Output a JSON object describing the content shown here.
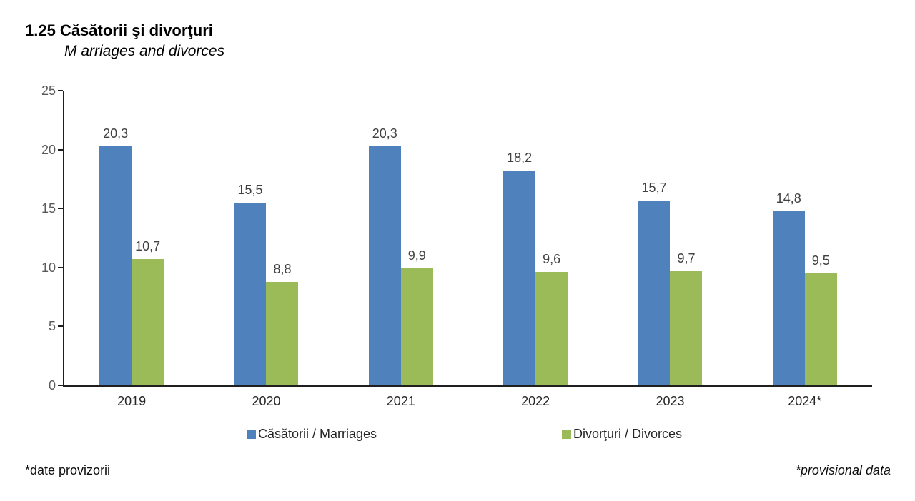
{
  "header": {
    "title": "1.25 Căsătorii şi divorţuri",
    "subtitle": "M arriages and divorces"
  },
  "chart_data": {
    "type": "bar",
    "title": "1.25 Căsătorii şi divorţuri",
    "subtitle": "M arriages and divorces",
    "categories": [
      "2019",
      "2020",
      "2021",
      "2022",
      "2023",
      "2024*"
    ],
    "series": [
      {
        "name": "Căsătorii / Marriages",
        "color": "#4F81BD",
        "values": [
          20.3,
          15.5,
          20.3,
          18.2,
          15.7,
          14.8
        ],
        "labels": [
          "20,3",
          "15,5",
          "20,3",
          "18,2",
          "15,7",
          "14,8"
        ]
      },
      {
        "name": "Divorţuri / Divorces",
        "color": "#9BBB59",
        "values": [
          10.7,
          8.8,
          9.9,
          9.6,
          9.7,
          9.5
        ],
        "labels": [
          "10,7",
          "8,8",
          "9,9",
          "9,6",
          "9,7",
          "9,5"
        ]
      }
    ],
    "xlabel": "",
    "ylabel": "",
    "ylim": [
      0,
      25
    ],
    "yticks": [
      0,
      5,
      10,
      15,
      20,
      25
    ],
    "grid": false,
    "legend_position": "bottom"
  },
  "legend": {
    "items": [
      {
        "label": "Căsătorii / Marriages",
        "color": "#4F81BD"
      },
      {
        "label": "Divorţuri / Divorces",
        "color": "#9BBB59"
      }
    ]
  },
  "footnotes": {
    "left": "*date provizorii",
    "right": "*provisional data"
  },
  "colors": {
    "marriages": "#4F81BD",
    "divorces": "#9BBB59",
    "axis": "#1f1f1f",
    "y_tick_label": "#595959",
    "value_label": "#404040",
    "category_label": "#262626"
  }
}
